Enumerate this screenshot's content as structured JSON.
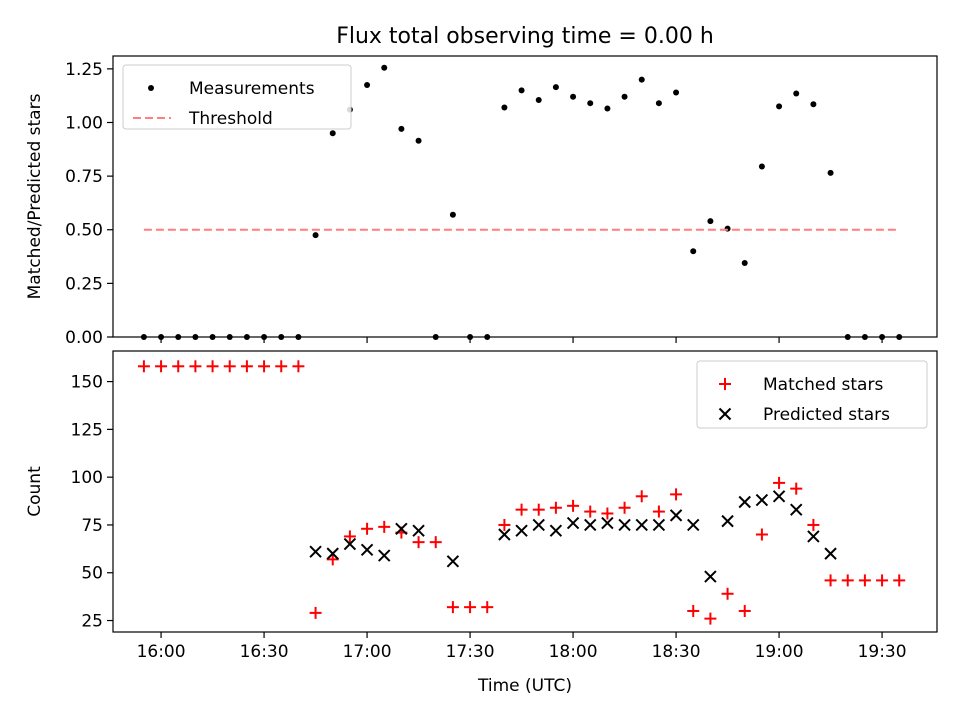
{
  "chart_data": [
    {
      "type": "scatter",
      "title": "Flux total observing time = 0.00 h",
      "xlabel": "",
      "ylabel": "Matched/Predicted stars",
      "ylim": [
        0,
        1.31
      ],
      "yticks": [
        "0.00",
        "0.25",
        "0.50",
        "0.75",
        "1.00",
        "1.25"
      ],
      "legend_position": "top-left",
      "series": [
        {
          "name": "Measurements",
          "marker": "dot",
          "color": "#000000",
          "points": [
            [
              "15:55",
              0.0
            ],
            [
              "16:00",
              0.0
            ],
            [
              "16:05",
              0.0
            ],
            [
              "16:10",
              0.0
            ],
            [
              "16:15",
              0.0
            ],
            [
              "16:20",
              0.0
            ],
            [
              "16:25",
              0.0
            ],
            [
              "16:30",
              0.0
            ],
            [
              "16:35",
              0.0
            ],
            [
              "16:40",
              0.0
            ],
            [
              "16:45",
              0.475
            ],
            [
              "16:50",
              0.95
            ],
            [
              "16:55",
              1.06
            ],
            [
              "17:00",
              1.175
            ],
            [
              "17:05",
              1.255
            ],
            [
              "17:10",
              0.97
            ],
            [
              "17:15",
              0.915
            ],
            [
              "17:20",
              0.0
            ],
            [
              "17:25",
              0.57
            ],
            [
              "17:30",
              0.0
            ],
            [
              "17:35",
              0.0
            ],
            [
              "17:40",
              1.07
            ],
            [
              "17:45",
              1.15
            ],
            [
              "17:50",
              1.105
            ],
            [
              "17:55",
              1.165
            ],
            [
              "18:00",
              1.12
            ],
            [
              "18:05",
              1.09
            ],
            [
              "18:10",
              1.065
            ],
            [
              "18:15",
              1.12
            ],
            [
              "18:20",
              1.2
            ],
            [
              "18:25",
              1.09
            ],
            [
              "18:30",
              1.14
            ],
            [
              "18:35",
              0.4
            ],
            [
              "18:40",
              0.54
            ],
            [
              "18:45",
              0.505
            ],
            [
              "18:50",
              0.345
            ],
            [
              "18:55",
              0.795
            ],
            [
              "19:00",
              1.075
            ],
            [
              "19:05",
              1.135
            ],
            [
              "19:10",
              1.085
            ],
            [
              "19:15",
              0.765
            ],
            [
              "19:20",
              0.0
            ],
            [
              "19:25",
              0.0
            ],
            [
              "19:30",
              0.0
            ],
            [
              "19:35",
              0.0
            ]
          ]
        },
        {
          "name": "Threshold",
          "marker": "dashed-line",
          "color": "#ff7f7f",
          "points": [
            [
              "15:55",
              0.5
            ],
            [
              "19:35",
              0.5
            ]
          ]
        }
      ]
    },
    {
      "type": "scatter",
      "title": "",
      "xlabel": "Time (UTC)",
      "ylabel": "Count",
      "ylim": [
        19,
        166
      ],
      "yticks": [
        "25",
        "50",
        "75",
        "100",
        "125",
        "150"
      ],
      "xlim": [
        "15:46",
        "19:46"
      ],
      "xticks": [
        "16:00",
        "16:30",
        "17:00",
        "17:30",
        "18:00",
        "18:30",
        "19:00",
        "19:30"
      ],
      "legend_position": "top-right",
      "series": [
        {
          "name": "Matched stars",
          "marker": "plus",
          "color": "#ff0000",
          "points": [
            [
              "15:55",
              158
            ],
            [
              "16:00",
              158
            ],
            [
              "16:05",
              158
            ],
            [
              "16:10",
              158
            ],
            [
              "16:15",
              158
            ],
            [
              "16:20",
              158
            ],
            [
              "16:25",
              158
            ],
            [
              "16:30",
              158
            ],
            [
              "16:35",
              158
            ],
            [
              "16:40",
              158
            ],
            [
              "16:45",
              29
            ],
            [
              "16:50",
              57
            ],
            [
              "16:55",
              69
            ],
            [
              "17:00",
              73
            ],
            [
              "17:05",
              74
            ],
            [
              "17:10",
              71
            ],
            [
              "17:15",
              66
            ],
            [
              "17:20",
              66
            ],
            [
              "17:25",
              32
            ],
            [
              "17:30",
              32
            ],
            [
              "17:35",
              32
            ],
            [
              "17:40",
              75
            ],
            [
              "17:45",
              83
            ],
            [
              "17:50",
              83
            ],
            [
              "17:55",
              84
            ],
            [
              "18:00",
              85
            ],
            [
              "18:05",
              82
            ],
            [
              "18:10",
              81
            ],
            [
              "18:15",
              84
            ],
            [
              "18:20",
              90
            ],
            [
              "18:25",
              82
            ],
            [
              "18:30",
              91
            ],
            [
              "18:35",
              30
            ],
            [
              "18:40",
              26
            ],
            [
              "18:45",
              39
            ],
            [
              "18:50",
              30
            ],
            [
              "18:55",
              70
            ],
            [
              "19:00",
              97
            ],
            [
              "19:05",
              94
            ],
            [
              "19:10",
              75
            ],
            [
              "19:15",
              46
            ],
            [
              "19:20",
              46
            ],
            [
              "19:25",
              46
            ],
            [
              "19:30",
              46
            ],
            [
              "19:35",
              46
            ]
          ]
        },
        {
          "name": "Predicted stars",
          "marker": "x",
          "color": "#000000",
          "points": [
            [
              "16:45",
              61
            ],
            [
              "16:50",
              60
            ],
            [
              "16:55",
              65
            ],
            [
              "17:00",
              62
            ],
            [
              "17:05",
              59
            ],
            [
              "17:10",
              73
            ],
            [
              "17:15",
              72
            ],
            [
              "17:25",
              56
            ],
            [
              "17:40",
              70
            ],
            [
              "17:45",
              72
            ],
            [
              "17:50",
              75
            ],
            [
              "17:55",
              72
            ],
            [
              "18:00",
              76
            ],
            [
              "18:05",
              75
            ],
            [
              "18:10",
              76
            ],
            [
              "18:15",
              75
            ],
            [
              "18:20",
              75
            ],
            [
              "18:25",
              75
            ],
            [
              "18:30",
              80
            ],
            [
              "18:35",
              75
            ],
            [
              "18:40",
              48
            ],
            [
              "18:45",
              77
            ],
            [
              "18:50",
              87
            ],
            [
              "18:55",
              88
            ],
            [
              "19:00",
              90
            ],
            [
              "19:05",
              83
            ],
            [
              "19:10",
              69
            ],
            [
              "19:15",
              60
            ]
          ]
        }
      ]
    }
  ]
}
